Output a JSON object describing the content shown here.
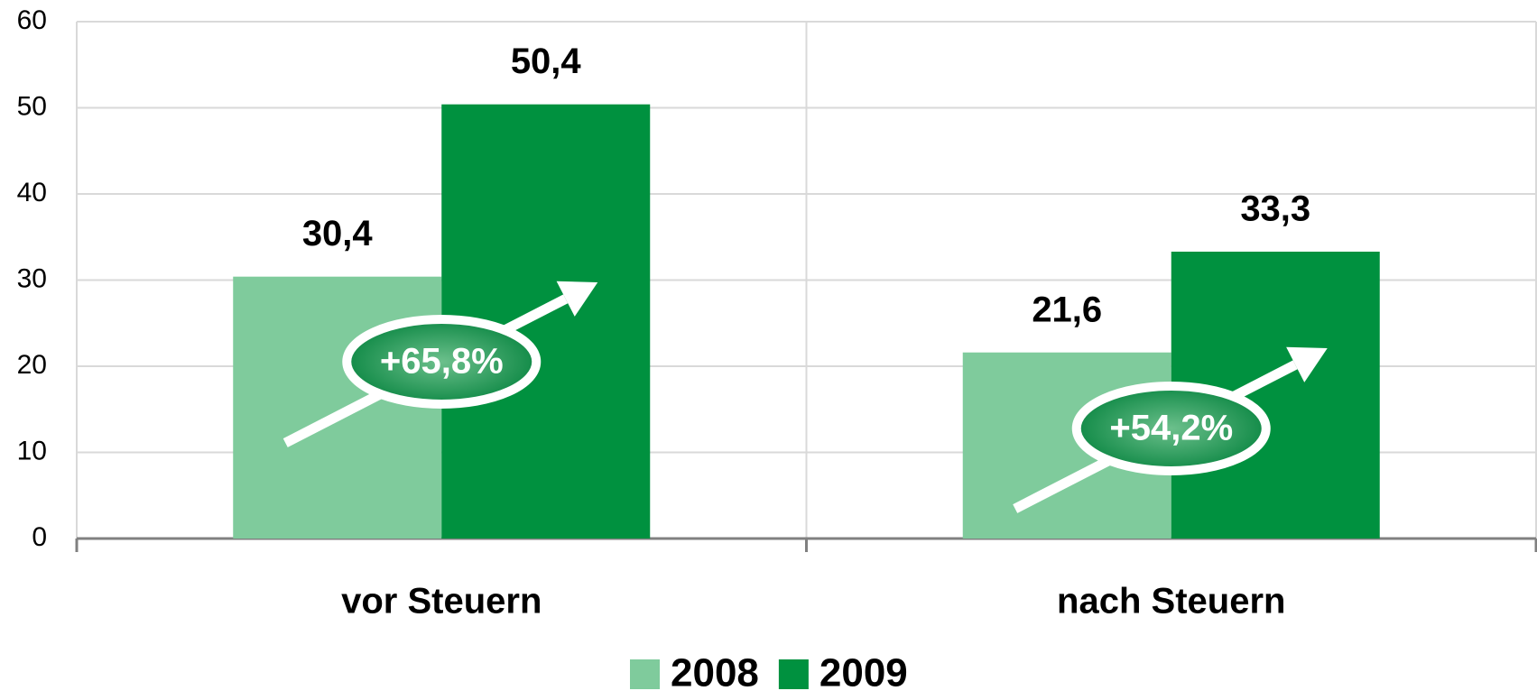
{
  "chart_data": {
    "type": "bar",
    "categories": [
      "vor Steuern",
      "nach Steuern"
    ],
    "series": [
      {
        "name": "2008",
        "color": "#7fcb9c",
        "values": [
          30.4,
          21.6
        ],
        "value_labels": [
          "30,4",
          "21,6"
        ]
      },
      {
        "name": "2009",
        "color": "#00913f",
        "values": [
          50.4,
          33.3
        ],
        "value_labels": [
          "50,4",
          "33,3"
        ]
      }
    ],
    "annotations": [
      "+65,8%",
      "+54,2%"
    ],
    "ylim": [
      0,
      60
    ],
    "yticks": [
      0,
      10,
      20,
      30,
      40,
      50,
      60
    ],
    "grid": true,
    "legend": "bottom"
  }
}
